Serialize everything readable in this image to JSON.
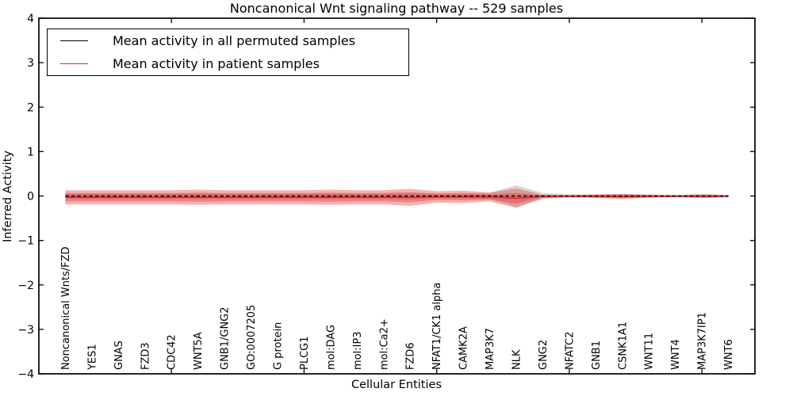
{
  "chart_data": {
    "type": "line",
    "title": "Noncanonical Wnt signaling pathway -- 529 samples",
    "xlabel": "Cellular Entities",
    "ylabel": "Inferred Activity",
    "ylim": [
      -4,
      4
    ],
    "ytick_values": [
      4,
      3,
      2,
      1,
      0,
      -1,
      -2,
      -3,
      -4
    ],
    "ytick_labels": [
      "4",
      "3",
      "2",
      "1",
      "0",
      "−1",
      "−2",
      "−3",
      "−4"
    ],
    "xtick_positions": [
      5,
      10,
      15,
      20,
      25
    ],
    "grid": false,
    "legend_position": "upper left",
    "categories": [
      "Noncanonical Wnts/FZD",
      "YES1",
      "GNAS",
      "FZD3",
      "CDC42",
      "WNT5A",
      "GNB1/GNG2",
      "GO:0007205",
      "G protein",
      "PLCG1",
      "mol:DAG",
      "mol:IP3",
      "mol:Ca2+",
      "FZD6",
      "NFAT1/CK1 alpha",
      "CAMK2A",
      "MAP3K7",
      "NLK",
      "GNG2",
      "NFATC2",
      "GNB1",
      "CSNK1A1",
      "WNT11",
      "WNT4",
      "MAP3K7IP1",
      "WNT6"
    ],
    "series": [
      {
        "name": "Mean activity in all permuted samples",
        "color": "#000000",
        "style": "dashed",
        "values": [
          0,
          0,
          0,
          0,
          0,
          0,
          0,
          0,
          0,
          0,
          0,
          0,
          0,
          0,
          0,
          0,
          0,
          0,
          0,
          0,
          0,
          0,
          0,
          0,
          0,
          0
        ]
      },
      {
        "name": "Mean activity in patient samples",
        "color": "#e62020",
        "style": "solid",
        "values": [
          -0.03,
          -0.03,
          -0.03,
          -0.03,
          -0.03,
          -0.03,
          -0.03,
          -0.03,
          -0.03,
          -0.03,
          -0.03,
          -0.03,
          -0.03,
          -0.03,
          -0.02,
          -0.02,
          -0.02,
          -0.05,
          -0.01,
          -0.005,
          -0.005,
          -0.01,
          -0.005,
          -0.005,
          -0.005,
          -0.005
        ]
      }
    ],
    "bands": [
      {
        "name": "permuted-sample-spread",
        "center_series": 0,
        "color": "rgba(120,120,120,0.30)",
        "half_widths": [
          0.07,
          0.07,
          0.07,
          0.07,
          0.07,
          0.07,
          0.07,
          0.07,
          0.07,
          0.07,
          0.07,
          0.07,
          0.07,
          0.08,
          0.06,
          0.06,
          0.07,
          0.24,
          0.07,
          0.04,
          0.04,
          0.05,
          0.04,
          0.03,
          0.05,
          0.03
        ]
      },
      {
        "name": "patient-sample-spread-outer",
        "center_series": 1,
        "color": "rgba(235,60,60,0.40)",
        "half_widths": [
          0.16,
          0.16,
          0.16,
          0.16,
          0.16,
          0.17,
          0.16,
          0.16,
          0.16,
          0.16,
          0.17,
          0.16,
          0.16,
          0.19,
          0.13,
          0.14,
          0.1,
          0.22,
          0.04,
          0.02,
          0.04,
          0.06,
          0.03,
          0.02,
          0.04,
          0.02
        ]
      },
      {
        "name": "patient-sample-spread-inner",
        "center_series": 1,
        "color": "rgba(220,30,30,0.30)",
        "half_widths": [
          0.09,
          0.09,
          0.09,
          0.09,
          0.09,
          0.1,
          0.09,
          0.09,
          0.09,
          0.09,
          0.1,
          0.09,
          0.09,
          0.11,
          0.07,
          0.08,
          0.06,
          0.12,
          0.02,
          0.01,
          0.02,
          0.03,
          0.015,
          0.01,
          0.02,
          0.01
        ]
      }
    ]
  },
  "legend": {
    "items": [
      {
        "label": "Mean activity in all permuted samples",
        "color": "#000000"
      },
      {
        "label": "Mean activity in patient samples",
        "color": "#e62020"
      }
    ]
  }
}
